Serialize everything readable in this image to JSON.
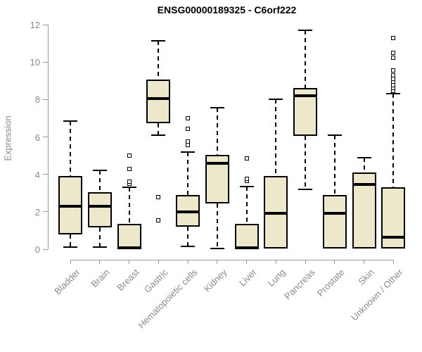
{
  "figure": {
    "title": "ENSG00000189325 - C6orf222"
  },
  "chart_data": {
    "type": "boxplot",
    "title": "ENSG00000189325 - C6orf222",
    "xlabel": "",
    "ylabel": "Expression",
    "ylim": [
      0,
      12
    ],
    "y_ticks": [
      0,
      2,
      4,
      6,
      8,
      10,
      12
    ],
    "grid": false,
    "legend": false,
    "categories": [
      "Bladder",
      "Brain",
      "Breast",
      "Gastric",
      "Hematopoietic cells",
      "Kidney",
      "Liver",
      "Lung",
      "Pancreas",
      "Prostate",
      "Skin",
      "Unknown / Other"
    ],
    "series": [
      {
        "name": "Bladder",
        "whisker_low": 0.1,
        "q1": 0.8,
        "median": 2.3,
        "q3": 3.9,
        "whisker_high": 6.85,
        "outliers": []
      },
      {
        "name": "Brain",
        "whisker_low": 0.1,
        "q1": 1.15,
        "median": 2.3,
        "q3": 3.05,
        "whisker_high": 4.2,
        "outliers": []
      },
      {
        "name": "Breast",
        "whisker_low": 0.0,
        "q1": 0.0,
        "median": 0.08,
        "q3": 1.35,
        "whisker_high": 3.3,
        "outliers": [
          3.5,
          3.6,
          4.3,
          5.0
        ]
      },
      {
        "name": "Gastric",
        "whisker_low": 6.1,
        "q1": 6.75,
        "median": 8.05,
        "q3": 9.05,
        "whisker_high": 11.15,
        "outliers": [
          2.8,
          1.55
        ]
      },
      {
        "name": "Hematopoietic cells",
        "whisker_low": 0.15,
        "q1": 1.2,
        "median": 2.0,
        "q3": 2.9,
        "whisker_high": 5.2,
        "outliers": [
          5.55,
          5.75,
          6.45,
          7.0
        ]
      },
      {
        "name": "Kidney",
        "whisker_low": 0.05,
        "q1": 2.45,
        "median": 4.6,
        "q3": 5.05,
        "whisker_high": 7.55,
        "outliers": []
      },
      {
        "name": "Liver",
        "whisker_low": 0.0,
        "q1": 0.0,
        "median": 0.08,
        "q3": 1.35,
        "whisker_high": 3.35,
        "outliers": [
          3.65,
          3.75,
          4.85
        ]
      },
      {
        "name": "Lung",
        "whisker_low": 0.05,
        "q1": 0.05,
        "median": 1.9,
        "q3": 3.9,
        "whisker_high": 8.0,
        "outliers": []
      },
      {
        "name": "Pancreas",
        "whisker_low": 3.2,
        "q1": 6.05,
        "median": 8.2,
        "q3": 8.6,
        "whisker_high": 11.7,
        "outliers": []
      },
      {
        "name": "Prostate",
        "whisker_low": 0.05,
        "q1": 0.05,
        "median": 1.9,
        "q3": 2.9,
        "whisker_high": 6.1,
        "outliers": []
      },
      {
        "name": "Skin",
        "whisker_low": 0.05,
        "q1": 0.05,
        "median": 3.45,
        "q3": 4.1,
        "whisker_high": 4.9,
        "outliers": []
      },
      {
        "name": "Unknown / Other",
        "whisker_low": 0.0,
        "q1": 0.05,
        "median": 0.65,
        "q3": 3.3,
        "whisker_high": 8.3,
        "outliers": [
          8.45,
          8.6,
          8.75,
          8.95,
          9.1,
          9.3,
          9.55,
          10.25,
          10.5,
          11.3
        ]
      }
    ],
    "colors": {
      "box_fill": "#EDE7CC",
      "box_border": "#000000",
      "median_line": "#000000",
      "whisker": "#000000",
      "outlier_border": "#000000",
      "axis_line": "#9B9B9B",
      "axis_text": "#8A8A8A",
      "title_text": "#000000"
    }
  }
}
